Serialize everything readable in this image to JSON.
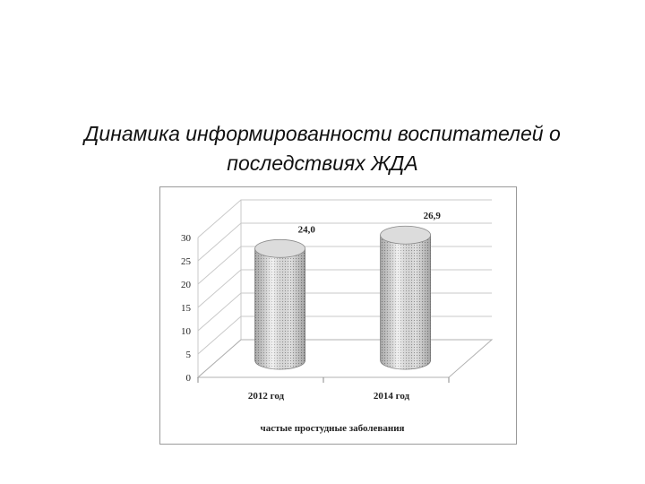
{
  "slide": {
    "title_line1": "Динамика информированности воспитателей о",
    "title_line2": "последствиях ЖДА"
  },
  "chart_data": {
    "type": "bar",
    "style": "3d-cylinder",
    "categories": [
      "2012 год",
      "2014 год"
    ],
    "values": [
      24.0,
      26.9
    ],
    "data_labels": [
      "24,0",
      "26,9"
    ],
    "xlabel": "частые простудные заболевания",
    "ylim": [
      0,
      30
    ],
    "yticks": [
      "0",
      "5",
      "10",
      "15",
      "20",
      "25",
      "30"
    ],
    "grid": true,
    "legend": "none",
    "bar_color": "#d0d0d0"
  }
}
